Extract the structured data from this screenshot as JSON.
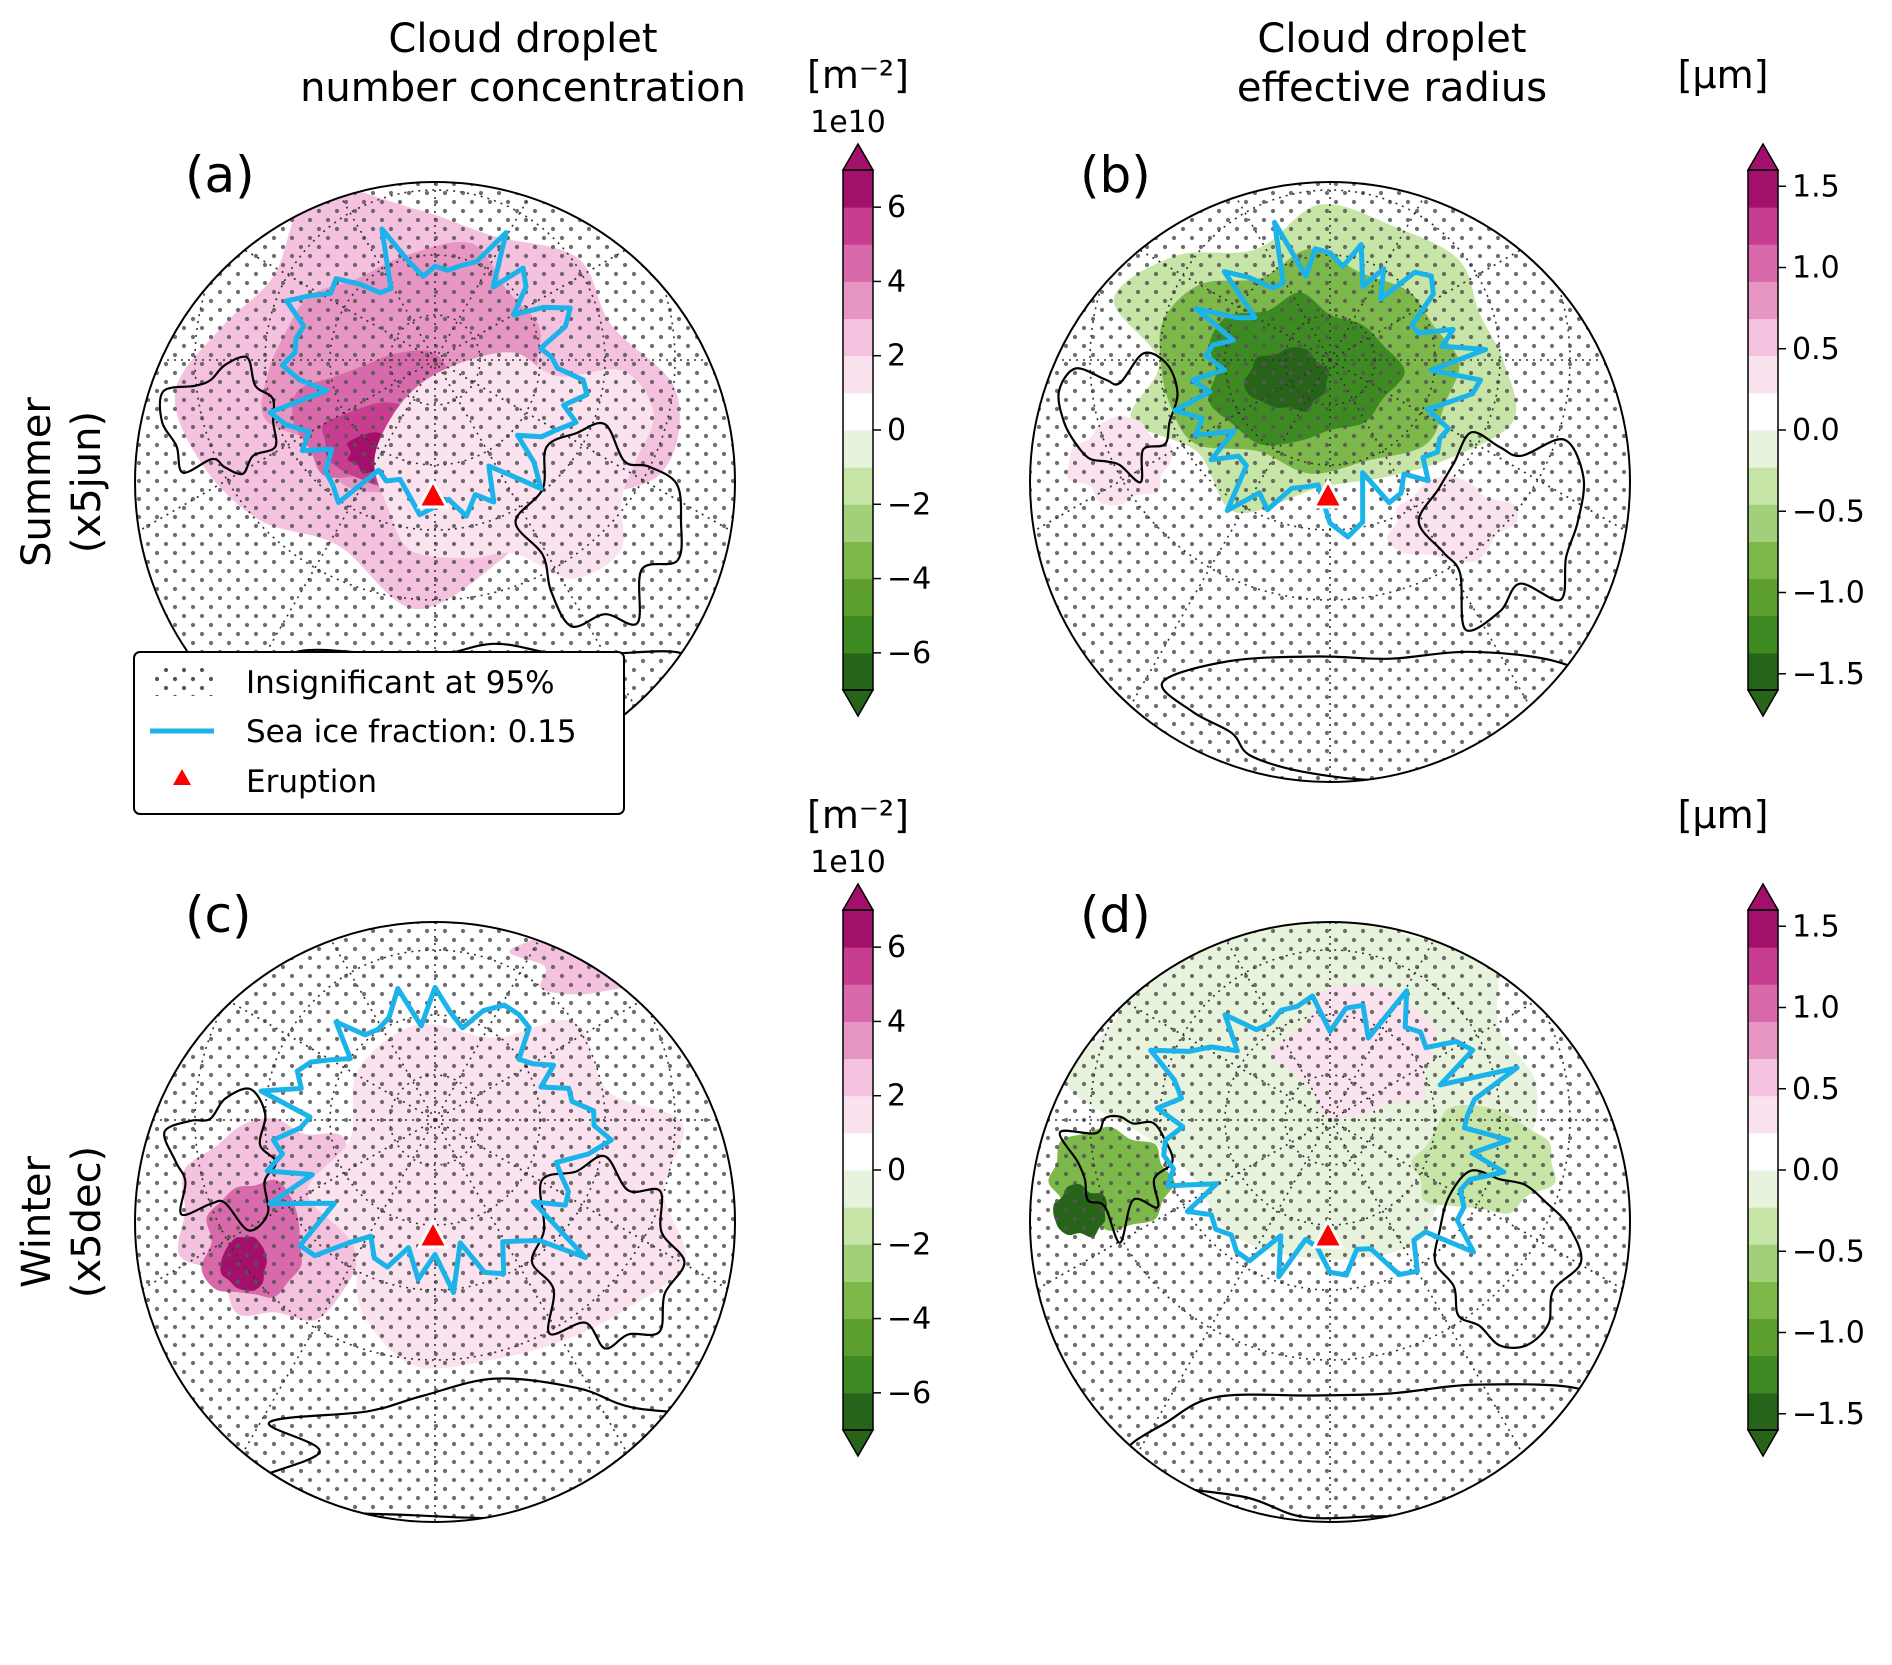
{
  "figure": {
    "column_titles": [
      [
        "Cloud droplet",
        "number concentration"
      ],
      [
        "Cloud droplet",
        "effective radius"
      ]
    ],
    "row_titles": [
      [
        "Summer",
        "(x5jun)"
      ],
      [
        "Winter",
        "(x5dec)"
      ]
    ],
    "legend": {
      "items": [
        {
          "label": "Insignificant at 95%",
          "symbol": "stipple"
        },
        {
          "label": "Sea ice fraction: 0.15",
          "symbol": "line",
          "color": "#1ab3ea"
        },
        {
          "label": "Eruption",
          "symbol": "triangle",
          "color": "#ff0000"
        }
      ]
    },
    "colors": {
      "sea_ice": "#1ab3ea",
      "eruption": "#ff0000",
      "scale": [
        "#276419",
        "#3d8a22",
        "#5c9f2f",
        "#7db84a",
        "#a2d07a",
        "#c6e5a7",
        "#e7f3dc",
        "#ffffff",
        "#fbe2ef",
        "#f4c1de",
        "#e796c4",
        "#d86aab",
        "#c73e91",
        "#a3106c"
      ]
    }
  },
  "chart_data": [
    {
      "type": "heatmap",
      "panel": "(a)",
      "title": "Cloud droplet number concentration",
      "row": "Summer (x5jun)",
      "colorbar": {
        "unit": "[m⁻²]",
        "multiplier": "1e10",
        "range": [
          -7,
          7
        ],
        "ticks": [
          "6",
          "4",
          "2",
          "0",
          "−2",
          "−4",
          "−6"
        ],
        "tick_values": [
          6,
          4,
          2,
          0,
          -2,
          -4,
          -6
        ],
        "extend": "both"
      },
      "features": [
        "Strong positive anomaly (up to ~6e10 m⁻²) over the Norwegian/Barents Sea and central Arctic",
        "Weak positive anomaly across Eurasia and North Atlantic"
      ],
      "eruption_marker": true,
      "has_legend": true
    },
    {
      "type": "heatmap",
      "panel": "(b)",
      "title": "Cloud droplet effective radius",
      "row": "Summer (x5jun)",
      "colorbar": {
        "unit": "[μm]",
        "multiplier": "",
        "range": [
          -1.6,
          1.6
        ],
        "ticks": [
          "1.5",
          "1.0",
          "0.5",
          "0.0",
          "−0.5",
          "−1.0",
          "−1.5"
        ],
        "tick_values": [
          1.5,
          1.0,
          0.5,
          0.0,
          -0.5,
          -1.0,
          -1.5
        ],
        "extend": "both"
      },
      "features": [
        "Strong negative anomaly (down to ~−1.5 μm) over the central Arctic Ocean",
        "Weak positive anomaly near Europe"
      ],
      "eruption_marker": true,
      "has_legend": false
    },
    {
      "type": "heatmap",
      "panel": "(c)",
      "title": "Cloud droplet number concentration",
      "row": "Winter (x5dec)",
      "colorbar": {
        "unit": "[m⁻²]",
        "multiplier": "1e10",
        "range": [
          -7,
          7
        ],
        "ticks": [
          "6",
          "4",
          "2",
          "0",
          "−2",
          "−4",
          "−6"
        ],
        "tick_values": [
          6,
          4,
          2,
          0,
          -2,
          -4,
          -6
        ],
        "extend": "both"
      },
      "features": [
        "Strong positive anomaly south of Greenland / Labrador Sea",
        "Positive anomaly over the North Pacific / Bering region"
      ],
      "eruption_marker": true,
      "has_legend": false
    },
    {
      "type": "heatmap",
      "panel": "(d)",
      "title": "Cloud droplet effective radius",
      "row": "Winter (x5dec)",
      "colorbar": {
        "unit": "[μm]",
        "multiplier": "",
        "range": [
          -1.6,
          1.6
        ],
        "ticks": [
          "1.5",
          "1.0",
          "0.5",
          "0.0",
          "−0.5",
          "−1.0",
          "−1.5"
        ],
        "tick_values": [
          1.5,
          1.0,
          0.5,
          0.0,
          -0.5,
          -1.0,
          -1.5
        ],
        "extend": "both"
      },
      "features": [
        "Negative anomaly ring around the Arctic sea-ice edge",
        "Weak positive anomaly over central Arctic"
      ],
      "eruption_marker": true,
      "has_legend": false
    }
  ]
}
